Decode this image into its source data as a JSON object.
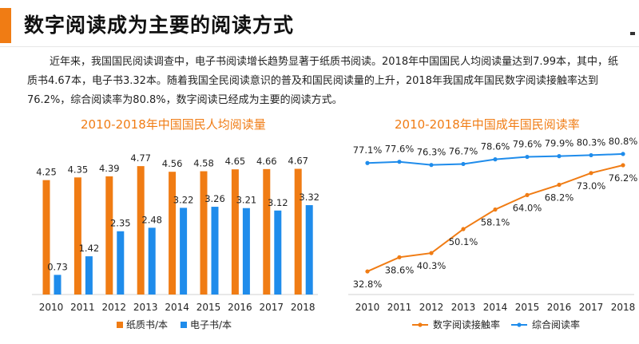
{
  "slide": {
    "title": "数字阅读成为主要的阅读方式",
    "intro": "近年来，我国国民阅读调查中，电子书阅读增长趋势显著于纸质书阅读。2018年中国国民人均阅读量达到7.99本，其中，纸质书4.67本，电子书3.32本。随着我国全民阅读意识的普及和国民阅读量的上升，2018年我国成年国民数字阅读接触率达到76.2%，综合阅读率为80.8%，数字阅读已经成为主要的阅读方式。",
    "accent_color": "#f07c14"
  },
  "chart_data": [
    {
      "type": "bar",
      "title": "2010-2018年中国国民人均阅读量",
      "categories": [
        "2010",
        "2011",
        "2012",
        "2013",
        "2014",
        "2015",
        "2016",
        "2017",
        "2018"
      ],
      "series": [
        {
          "name": "纸质书/本",
          "color": "#f07c14",
          "values": [
            4.25,
            4.35,
            4.39,
            4.77,
            4.56,
            4.58,
            4.65,
            4.66,
            4.67
          ]
        },
        {
          "name": "电子书/本",
          "color": "#1f8ceb",
          "values": [
            0.73,
            1.42,
            2.35,
            2.48,
            3.22,
            3.26,
            3.21,
            3.12,
            3.32
          ]
        }
      ],
      "ylim": [
        0,
        5.1
      ],
      "legend": "bottom",
      "grid": false
    },
    {
      "type": "line",
      "title": "2010-2018年中国成年国民阅读率",
      "categories": [
        "2010",
        "2011",
        "2012",
        "2013",
        "2014",
        "2015",
        "2016",
        "2017",
        "2018"
      ],
      "series": [
        {
          "name": "数字阅读接触率",
          "color": "#f07c14",
          "values": [
            32.8,
            38.6,
            40.3,
            50.1,
            58.1,
            64.0,
            68.2,
            73.0,
            76.2
          ],
          "labels": [
            "32.8%",
            "38.6%",
            "40.3%",
            "50.1%",
            "58.1%",
            "64.0%",
            "68.2%",
            "73.0%",
            "76.2%"
          ]
        },
        {
          "name": "综合阅读率",
          "color": "#1f8ceb",
          "values": [
            77.1,
            77.6,
            76.3,
            76.7,
            78.6,
            79.6,
            79.9,
            80.3,
            80.8
          ],
          "labels": [
            "77.1%",
            "77.6%",
            "76.3%",
            "76.7%",
            "78.6%",
            "79.6%",
            "79.9%",
            "80.3%",
            "80.8%"
          ]
        }
      ],
      "ylim": [
        25,
        85
      ],
      "legend": "bottom",
      "grid": false
    }
  ]
}
